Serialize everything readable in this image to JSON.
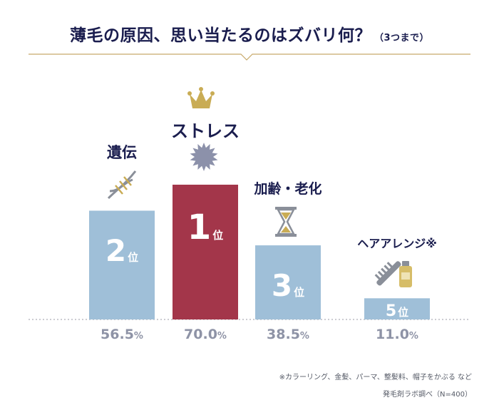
{
  "title": {
    "main": "薄毛の原因、思い当たるのはズバリ何？",
    "sub": "（3つまで）"
  },
  "colors": {
    "bar_default": "#9fbfd8",
    "bar_top": "#a3364a",
    "title": "#1a1d4e",
    "accent_line": "#c8a96a",
    "percent_text": "#8e93a6"
  },
  "rank_suffix": "位",
  "percent_unit": "%",
  "chart_data": {
    "type": "bar",
    "title": "薄毛の原因、思い当たるのはズバリ何？（3つまで）",
    "categories": [
      "遺伝",
      "ストレス",
      "加齢・老化",
      "ヘアアレンジ※"
    ],
    "values": [
      56.5,
      70.0,
      38.5,
      11.0
    ],
    "value_labels": [
      "56.5",
      "70.0",
      "38.5",
      "11.0"
    ],
    "ranks": [
      "2",
      "1",
      "3",
      "5"
    ],
    "icons": [
      "dna-icon",
      "stress-burst-icon",
      "hourglass-icon",
      "comb-and-tube-icon"
    ],
    "highlight_icon": "crown-icon",
    "ylim": [
      0,
      80
    ],
    "grid": false,
    "legend": "none"
  },
  "footnotes": {
    "note": "※カラーリング、金髪、パーマ、整髪料、帽子をかぶる など",
    "source": "発毛剤ラボ調べ（N=400）"
  }
}
